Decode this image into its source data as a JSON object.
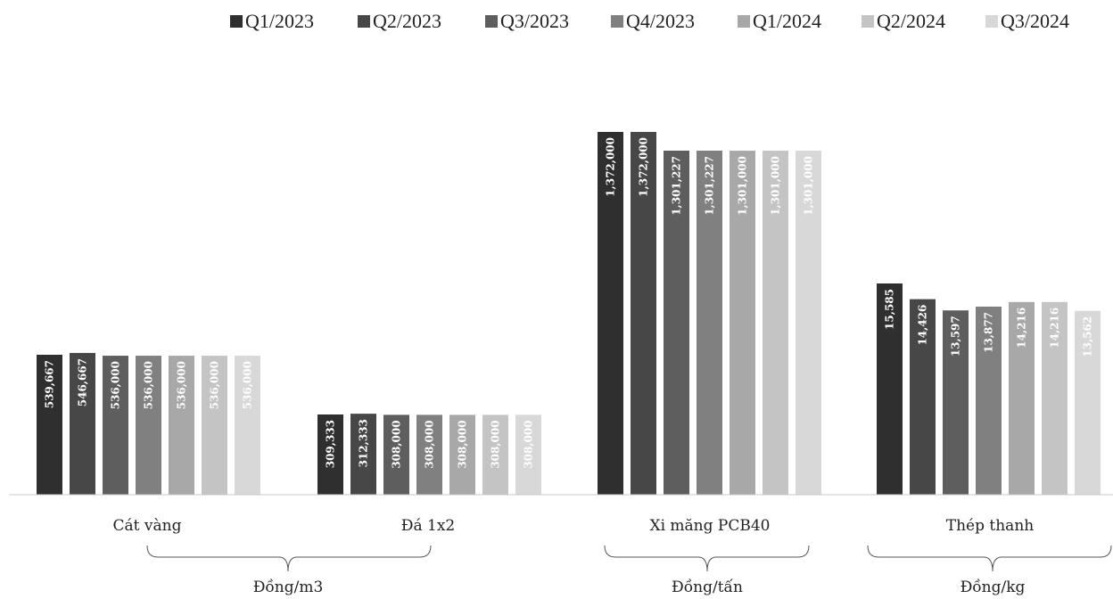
{
  "chart_data": {
    "type": "bar",
    "series_names": [
      "Q1/2023",
      "Q2/2023",
      "Q3/2023",
      "Q4/2023",
      "Q1/2024",
      "Q2/2024",
      "Q3/2024"
    ],
    "colors": [
      "#2f2f2f",
      "#474747",
      "#5e5e5e",
      "#808080",
      "#a8a8a8",
      "#c4c4c4",
      "#d8d8d8"
    ],
    "groups": [
      {
        "label": "Cát vàng",
        "values": [
          539667,
          546667,
          536000,
          536000,
          536000,
          536000,
          536000
        ],
        "value_labels": [
          "539,667",
          "546,667",
          "536,000",
          "536,000",
          "536,000",
          "536,000",
          "536,000"
        ]
      },
      {
        "label": "Đá 1x2",
        "values": [
          309333,
          312333,
          308000,
          308000,
          308000,
          308000,
          308000
        ],
        "value_labels": [
          "309,333",
          "312,333",
          "308,000",
          "308,000",
          "308,000",
          "308,000",
          "308,000"
        ]
      },
      {
        "label": "Xi măng PCB40",
        "values": [
          1372000,
          1372000,
          1301227,
          1301227,
          1301000,
          1301000,
          1301000
        ],
        "value_labels": [
          "1,372,000",
          "1,372,000",
          "1,301,227",
          "1,301,227",
          "1,301,000",
          "1,301,000",
          "1,301,000"
        ]
      },
      {
        "label": "Thép thanh",
        "values": [
          15585,
          14426,
          13597,
          13877,
          14216,
          14216,
          13562
        ],
        "value_labels": [
          "15,585",
          "14,426",
          "13,597",
          "13,877",
          "14,216",
          "14,216",
          "13,562"
        ]
      }
    ],
    "units": [
      {
        "label": "Đồng/m3",
        "groups": [
          0,
          1
        ]
      },
      {
        "label": "Đồng/tấn",
        "groups": [
          2
        ]
      },
      {
        "label": "Đồng/kg",
        "groups": [
          3
        ]
      }
    ],
    "legend_position": "top",
    "grid": false
  }
}
